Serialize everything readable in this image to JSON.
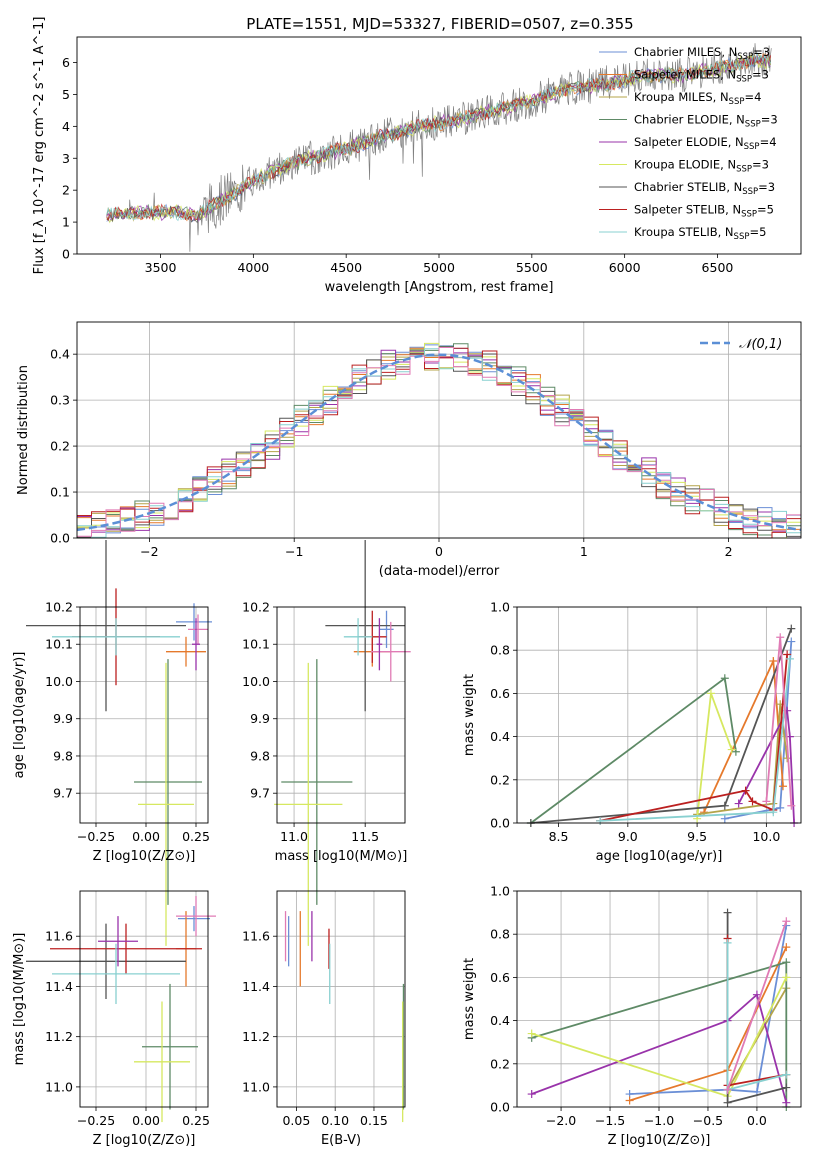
{
  "figure_title": "PLATE=1551, MJD=53327, FIBERID=0507, z=0.355",
  "colors": {
    "series": [
      "#6b8fd6",
      "#e5792c",
      "#b4a44a",
      "#5e8a66",
      "#9933aa",
      "#d6e860",
      "#555555",
      "#bb2020",
      "#88d0d0",
      "#e07bb5"
    ],
    "grid": "#b0b0b0",
    "gaussian": "#5b8fd6",
    "data_spectrum": "#808080"
  },
  "chart_data": [
    {
      "id": "spectrum",
      "type": "line",
      "title": "PLATE=1551, MJD=53327, FIBERID=0507, z=0.355",
      "xlabel": "wavelength [Angstrom, rest frame]",
      "ylabel": "Flux [f_λ 10^-17 erg cm^-2 s^-1 A^-1]",
      "xlim": [
        3050,
        6950
      ],
      "ylim": [
        0,
        6.8
      ],
      "xticks": [
        3500,
        4000,
        4500,
        5000,
        5500,
        6000,
        6500
      ],
      "yticks": [
        0,
        1,
        2,
        3,
        4,
        5,
        6
      ],
      "grid": false,
      "legend_position": "top-right",
      "legend": [
        "Chabrier MILES, N_SSP=3",
        "Salpeter MILES, N_SSP=3",
        "Kroupa MILES, N_SSP=4",
        "Chabrier ELODIE, N_SSP=3",
        "Salpeter ELODIE, N_SSP=4",
        "Kroupa ELODIE, N_SSP=3",
        "Chabrier STELIB, N_SSP=3",
        "Salpeter STELIB, N_SSP=5",
        "Kroupa STELIB, N_SSP=5"
      ],
      "continuum_nodes": [
        [
          3210,
          1.2
        ],
        [
          3400,
          1.3
        ],
        [
          3600,
          1.3
        ],
        [
          3700,
          1.2
        ],
        [
          3800,
          1.6
        ],
        [
          3900,
          1.9
        ],
        [
          4000,
          2.3
        ],
        [
          4100,
          2.6
        ],
        [
          4300,
          3.0
        ],
        [
          4500,
          3.3
        ],
        [
          4700,
          3.7
        ],
        [
          4900,
          4.0
        ],
        [
          5100,
          4.2
        ],
        [
          5300,
          4.5
        ],
        [
          5500,
          4.8
        ],
        [
          5700,
          5.2
        ],
        [
          5900,
          5.3
        ],
        [
          6100,
          5.6
        ],
        [
          6300,
          5.6
        ],
        [
          6500,
          5.8
        ],
        [
          6700,
          6.1
        ],
        [
          6790,
          6.0
        ]
      ]
    },
    {
      "id": "residuals",
      "type": "histogram",
      "xlabel": "(data-model)/error",
      "ylabel": "Normed distribution",
      "xlim": [
        -2.5,
        2.5
      ],
      "ylim": [
        0,
        0.47
      ],
      "xticks": [
        -2,
        -1,
        0,
        1,
        2
      ],
      "yticks": [
        0.0,
        0.1,
        0.2,
        0.3,
        0.4
      ],
      "grid": true,
      "legend_position": "top-right",
      "legend": [
        "𝒩(0,1)"
      ],
      "bin_width": 0.1
    },
    {
      "id": "age_vs_Z",
      "type": "scatter",
      "xlabel": "Z [log10(Z/Z⊙)]",
      "ylabel": "age [log10(age/yr)]",
      "xlim": [
        -0.33,
        0.31
      ],
      "ylim": [
        9.62,
        10.2
      ],
      "xticks": [
        -0.25,
        0.0,
        0.25
      ],
      "xticklabels": [
        "−0.25",
        "0.00",
        "0.25"
      ],
      "yticks": [
        9.7,
        9.8,
        9.9,
        10.0,
        10.1,
        10.2
      ],
      "grid": true,
      "points": [
        {
          "s": 0,
          "x": 0.24,
          "y": 10.16,
          "xe": 0.09,
          "ye": 0.05
        },
        {
          "s": 1,
          "x": 0.2,
          "y": 10.08,
          "xe": 0.1,
          "ye": 0.04
        },
        {
          "s": 3,
          "x": 0.11,
          "y": 9.73,
          "xe": 0.17,
          "ye": 0.33
        },
        {
          "s": 5,
          "x": 0.1,
          "y": 9.67,
          "xe": 0.14,
          "ye": 0.38
        },
        {
          "s": 6,
          "x": -0.2,
          "y": 10.15,
          "xe": 0.4,
          "ye": 0.23
        },
        {
          "s": 7,
          "x": -0.15,
          "y": 10.12,
          "xe": 0.22,
          "ye": 0.13
        },
        {
          "s": 8,
          "x": -0.15,
          "y": 10.12,
          "xe": 0.32,
          "ye": 0.05
        },
        {
          "s": 9,
          "x": 0.26,
          "y": 10.14,
          "xe": 0.05,
          "ye": 0.04
        },
        {
          "s": 4,
          "x": 0.25,
          "y": 10.1,
          "xe": 0.02,
          "ye": 0.07
        }
      ]
    },
    {
      "id": "age_vs_mass",
      "type": "scatter",
      "xlabel": "mass [log10(M/M⊙)]",
      "ylabel": "",
      "xlim": [
        10.88,
        11.78
      ],
      "ylim": [
        9.62,
        10.2
      ],
      "xticks": [
        11.0,
        11.5
      ],
      "yticks": [
        9.7,
        9.8,
        9.9,
        10.0,
        10.1,
        10.2
      ],
      "grid": true,
      "points": [
        {
          "s": 0,
          "x": 11.65,
          "y": 10.14,
          "xe": 0.05,
          "ye": 0.05
        },
        {
          "s": 1,
          "x": 11.55,
          "y": 10.08,
          "xe": 0.13,
          "ye": 0.04
        },
        {
          "s": 3,
          "x": 11.16,
          "y": 9.73,
          "xe": 0.25,
          "ye": 0.33
        },
        {
          "s": 5,
          "x": 11.1,
          "y": 9.67,
          "xe": 0.24,
          "ye": 0.38
        },
        {
          "s": 6,
          "x": 11.5,
          "y": 10.15,
          "xe": 0.28,
          "ye": 0.23
        },
        {
          "s": 7,
          "x": 11.55,
          "y": 10.12,
          "xe": 0.1,
          "ye": 0.07
        },
        {
          "s": 8,
          "x": 11.45,
          "y": 10.12,
          "xe": 0.1,
          "ye": 0.05
        },
        {
          "s": 9,
          "x": 11.68,
          "y": 10.08,
          "xe": 0.14,
          "ye": 0.08
        },
        {
          "s": 4,
          "x": 11.6,
          "y": 10.1,
          "xe": 0.02,
          "ye": 0.07
        }
      ]
    },
    {
      "id": "weight_vs_age",
      "type": "line",
      "xlabel": "age [log10(age/yr)]",
      "ylabel": "mass weight",
      "xlim": [
        8.2,
        10.25
      ],
      "ylim": [
        0,
        1.0
      ],
      "xticks": [
        8.5,
        9.0,
        9.5,
        10.0
      ],
      "yticks": [
        0.0,
        0.2,
        0.4,
        0.6,
        0.8,
        1.0
      ],
      "grid": true,
      "series": [
        {
          "s": 0,
          "points": [
            [
              9.7,
              0.02
            ],
            [
              10.1,
              0.07
            ],
            [
              10.18,
              0.84
            ]
          ]
        },
        {
          "s": 1,
          "points": [
            [
              9.55,
              0.05
            ],
            [
              10.05,
              0.75
            ],
            [
              10.12,
              0.17
            ]
          ]
        },
        {
          "s": 2,
          "points": [
            [
              9.5,
              0.04
            ],
            [
              10.05,
              0.09
            ],
            [
              10.1,
              0.55
            ],
            [
              10.15,
              0.3
            ]
          ]
        },
        {
          "s": 3,
          "points": [
            [
              8.3,
              0.0
            ],
            [
              9.7,
              0.67
            ],
            [
              9.78,
              0.33
            ]
          ]
        },
        {
          "s": 4,
          "points": [
            [
              9.8,
              0.09
            ],
            [
              10.15,
              0.52
            ],
            [
              10.17,
              0.4
            ],
            [
              10.2,
              0.0
            ]
          ]
        },
        {
          "s": 5,
          "points": [
            [
              9.5,
              0.02
            ],
            [
              9.6,
              0.6
            ],
            [
              9.75,
              0.34
            ]
          ]
        },
        {
          "s": 6,
          "points": [
            [
              8.3,
              0.0
            ],
            [
              9.7,
              0.08
            ],
            [
              10.18,
              0.9
            ]
          ]
        },
        {
          "s": 7,
          "points": [
            [
              8.8,
              0.01
            ],
            [
              9.85,
              0.15
            ],
            [
              9.9,
              0.1
            ],
            [
              10.05,
              0.06
            ],
            [
              10.15,
              0.78
            ]
          ]
        },
        {
          "s": 8,
          "points": [
            [
              8.8,
              0.01
            ],
            [
              10.05,
              0.05
            ],
            [
              10.17,
              0.76
            ]
          ]
        },
        {
          "s": 9,
          "points": [
            [
              10.0,
              0.1
            ],
            [
              10.1,
              0.86
            ],
            [
              10.18,
              0.08
            ]
          ]
        }
      ]
    },
    {
      "id": "mass_vs_Z",
      "type": "scatter",
      "xlabel": "Z [log10(Z/Z⊙)]",
      "ylabel": "mass [log10(M/M⊙)]",
      "xlim": [
        -0.33,
        0.31
      ],
      "ylim": [
        10.92,
        11.78
      ],
      "xticks": [
        -0.25,
        0.0,
        0.25
      ],
      "xticklabels": [
        "−0.25",
        "0.00",
        "0.25"
      ],
      "yticks": [
        11.0,
        11.2,
        11.4,
        11.6
      ],
      "grid": true,
      "points": [
        {
          "s": 0,
          "x": 0.24,
          "y": 11.67,
          "xe": 0.08,
          "ye": 0.05
        },
        {
          "s": 1,
          "x": 0.2,
          "y": 11.55,
          "xe": 0.05,
          "ye": 0.15
        },
        {
          "s": 3,
          "x": 0.12,
          "y": 11.16,
          "xe": 0.14,
          "ye": 0.25
        },
        {
          "s": 5,
          "x": 0.08,
          "y": 11.1,
          "xe": 0.14,
          "ye": 0.24
        },
        {
          "s": 6,
          "x": -0.2,
          "y": 11.5,
          "xe": 0.4,
          "ye": 0.15
        },
        {
          "s": 7,
          "x": -0.1,
          "y": 11.55,
          "xe": 0.38,
          "ye": 0.1
        },
        {
          "s": 8,
          "x": -0.15,
          "y": 11.45,
          "xe": 0.32,
          "ye": 0.12
        },
        {
          "s": 9,
          "x": 0.25,
          "y": 11.68,
          "xe": 0.1,
          "ye": 0.08
        },
        {
          "s": 4,
          "x": -0.14,
          "y": 11.58,
          "xe": 0.1,
          "ye": 0.1
        }
      ]
    },
    {
      "id": "mass_vs_EBV",
      "type": "scatter",
      "xlabel": "E(B-V)",
      "ylabel": "",
      "xlim": [
        0.025,
        0.19
      ],
      "ylim": [
        10.92,
        11.78
      ],
      "xticks": [
        0.05,
        0.1,
        0.15
      ],
      "xticklabels": [
        "0.05",
        "0.10",
        "0.15"
      ],
      "yticks": [
        11.0,
        11.2,
        11.4,
        11.6
      ],
      "grid": true,
      "points": [
        {
          "s": 0,
          "x": 0.04,
          "y": 11.58,
          "ye": 0.1
        },
        {
          "s": 1,
          "x": 0.055,
          "y": 11.55,
          "ye": 0.15
        },
        {
          "s": 4,
          "x": 0.07,
          "y": 11.6,
          "ye": 0.1
        },
        {
          "s": 7,
          "x": 0.092,
          "y": 11.55,
          "ye": 0.08
        },
        {
          "s": 8,
          "x": 0.093,
          "y": 11.45,
          "ye": 0.12
        },
        {
          "s": 9,
          "x": 0.036,
          "y": 11.6,
          "ye": 0.1
        },
        {
          "s": 3,
          "x": 0.188,
          "y": 11.16,
          "ye": 0.25
        },
        {
          "s": 5,
          "x": 0.187,
          "y": 11.1,
          "ye": 0.24
        }
      ]
    },
    {
      "id": "weight_vs_Z",
      "type": "line",
      "xlabel": "Z [log10(Z/Z⊙)]",
      "ylabel": "mass weight",
      "xlim": [
        -2.45,
        0.45
      ],
      "ylim": [
        0,
        1.0
      ],
      "xticks": [
        -2.0,
        -1.5,
        -1.0,
        -0.5,
        0.0
      ],
      "xticklabels": [
        "−2.0",
        "−1.5",
        "−1.0",
        "−0.5",
        "0.0"
      ],
      "yticks": [
        0.0,
        0.2,
        0.4,
        0.6,
        0.8,
        1.0
      ],
      "grid": true,
      "series": [
        {
          "s": 0,
          "points": [
            [
              -1.3,
              0.06
            ],
            [
              -0.3,
              0.08
            ],
            [
              0.0,
              0.07
            ],
            [
              0.3,
              0.84
            ]
          ]
        },
        {
          "s": 1,
          "points": [
            [
              -1.3,
              0.03
            ],
            [
              -0.3,
              0.17
            ],
            [
              0.3,
              0.74
            ]
          ]
        },
        {
          "s": 2,
          "points": [
            [
              -0.3,
              0.08
            ],
            [
              0.3,
              0.55
            ]
          ]
        },
        {
          "s": 3,
          "points": [
            [
              -2.3,
              0.32
            ],
            [
              0.3,
              0.67
            ],
            [
              0.3,
              0.0
            ]
          ]
        },
        {
          "s": 4,
          "points": [
            [
              -2.3,
              0.06
            ],
            [
              -0.3,
              0.4
            ],
            [
              0.0,
              0.52
            ],
            [
              0.3,
              0.02
            ]
          ]
        },
        {
          "s": 5,
          "points": [
            [
              -2.3,
              0.34
            ],
            [
              -0.3,
              0.05
            ],
            [
              0.3,
              0.6
            ]
          ]
        },
        {
          "s": 6,
          "points": [
            [
              -0.3,
              0.9
            ],
            [
              -0.3,
              0.02
            ],
            [
              0.3,
              0.09
            ]
          ]
        },
        {
          "s": 7,
          "points": [
            [
              -0.3,
              0.78
            ],
            [
              -0.3,
              0.1
            ],
            [
              0.3,
              0.15
            ]
          ]
        },
        {
          "s": 8,
          "points": [
            [
              -0.3,
              0.76
            ],
            [
              -0.3,
              0.08
            ],
            [
              0.3,
              0.15
            ]
          ]
        },
        {
          "s": 9,
          "points": [
            [
              -0.3,
              0.08
            ],
            [
              0.3,
              0.86
            ]
          ]
        }
      ]
    }
  ]
}
